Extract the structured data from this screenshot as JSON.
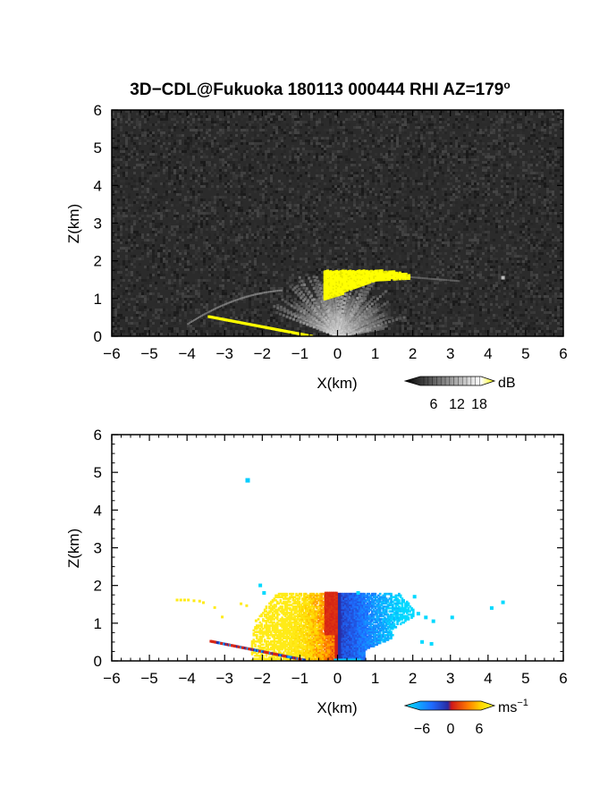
{
  "title": "3D−CDL@Fukuoka 180113 000444 RHI AZ=179",
  "title_superscript": "o",
  "chart_data": [
    {
      "type": "heatmap",
      "panel": "reflectivity",
      "xlabel": "X(km)",
      "ylabel": "Z(km)",
      "xlim": [
        -6,
        6
      ],
      "ylim": [
        0,
        6
      ],
      "xticks": [
        "−6",
        "−5",
        "−4",
        "−3",
        "−2",
        "−1",
        "0",
        "1",
        "2",
        "3",
        "4",
        "5",
        "6"
      ],
      "yticks": [
        "0",
        "1",
        "2",
        "3",
        "4",
        "5",
        "6"
      ],
      "background": "noisy grey speckle (low SNR)",
      "features": [
        {
          "name": "fan-shaped clear-air echo",
          "x_range": [
            -4,
            3
          ],
          "z_range": [
            0,
            1.6
          ],
          "level_db": "6-12"
        },
        {
          "name": "strong echo patch (≥18 dB)",
          "x_range": [
            -0.4,
            1.9
          ],
          "z_range": [
            1.0,
            1.75
          ]
        },
        {
          "name": "strong echo ground streak (≥18 dB)",
          "x_range": [
            -3.4,
            -0.7
          ],
          "z_range": [
            0,
            0.5
          ]
        }
      ],
      "colorbar": {
        "unit": "dB",
        "ticks": [
          "6",
          "12",
          "18"
        ],
        "palette": [
          "#000000",
          "#ffffff",
          "#ffff00"
        ]
      }
    },
    {
      "type": "heatmap",
      "panel": "doppler_velocity",
      "xlabel": "X(km)",
      "ylabel": "Z(km)",
      "xlim": [
        -6,
        6
      ],
      "ylim": [
        0,
        6
      ],
      "xticks": [
        "−6",
        "−5",
        "−4",
        "−3",
        "−2",
        "−1",
        "0",
        "1",
        "2",
        "3",
        "4",
        "5",
        "6"
      ],
      "yticks": [
        "0",
        "1",
        "2",
        "3",
        "4",
        "5",
        "6"
      ],
      "features": [
        {
          "name": "receding flow (positive)",
          "x_range": [
            -2.2,
            0
          ],
          "z_range": [
            0,
            1.8
          ],
          "velocity_ms": [
            0,
            6
          ]
        },
        {
          "name": "approaching flow (negative)",
          "x_range": [
            0,
            2
          ],
          "z_range": [
            0,
            1.8
          ],
          "velocity_ms": [
            -6,
            0
          ]
        },
        {
          "name": "isolated echo",
          "x": -2.4,
          "z": 4.8,
          "velocity_ms": -8
        }
      ],
      "colorbar": {
        "unit": "ms",
        "unit_superscript": "−1",
        "ticks": [
          "−6",
          "0",
          "6"
        ],
        "palette": [
          "#00e5ff",
          "#1e6bff",
          "#2a2aa0",
          "#d01818",
          "#ff7a00",
          "#ffd700",
          "#ffff30"
        ]
      }
    }
  ]
}
